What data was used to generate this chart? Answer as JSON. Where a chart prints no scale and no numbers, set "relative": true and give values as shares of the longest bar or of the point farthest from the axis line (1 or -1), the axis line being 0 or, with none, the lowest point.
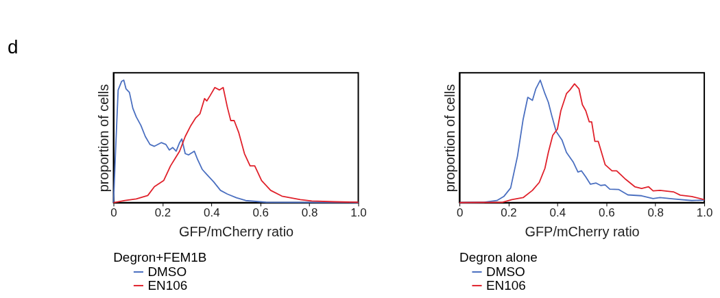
{
  "chart_data": [
    {
      "type": "line",
      "relative": true,
      "xlabel": "GFP/mCherry ratio",
      "ylabel": "proportion of cells",
      "legend_title": "Degron+FEM1B",
      "legend": "bottom",
      "annotations": [
        "d"
      ],
      "xlim": [
        0,
        1
      ],
      "xticks": [
        0,
        0.2,
        0.4,
        0.6,
        0.8,
        {
          "value": 1,
          "label": "1.0"
        }
      ],
      "grid": false,
      "marker": "none",
      "line_style": "solid",
      "series": [
        {
          "name": "DMSO",
          "color": "#4a6fc0",
          "x": [
            0,
            0.009,
            0.019,
            0.033,
            0.042,
            0.051,
            0.065,
            0.079,
            0.093,
            0.112,
            0.13,
            0.149,
            0.167,
            0.195,
            0.214,
            0.228,
            0.242,
            0.256,
            0.27,
            0.279,
            0.293,
            0.307,
            0.33,
            0.344,
            0.363,
            0.381,
            0.409,
            0.437,
            0.465,
            0.502,
            0.54,
            0.623,
            1
          ],
          "values": [
            0,
            0.45,
            0.92,
            0.99,
            1,
            0.93,
            0.9,
            0.77,
            0.7,
            0.63,
            0.54,
            0.475,
            0.46,
            0.49,
            0.475,
            0.43,
            0.45,
            0.42,
            0.49,
            0.52,
            0.4,
            0.39,
            0.42,
            0.35,
            0.27,
            0.23,
            0.17,
            0.1,
            0.07,
            0.04,
            0.017,
            0.003,
            0
          ]
        },
        {
          "name": "EN106",
          "color": "#e0202a",
          "x": [
            0,
            0.047,
            0.093,
            0.14,
            0.167,
            0.205,
            0.233,
            0.27,
            0.293,
            0.316,
            0.335,
            0.353,
            0.372,
            0.381,
            0.395,
            0.414,
            0.433,
            0.448,
            0.465,
            0.479,
            0.493,
            0.512,
            0.535,
            0.558,
            0.577,
            0.605,
            0.642,
            0.688,
            0.763,
            0.81,
            0.902,
            1
          ],
          "values": [
            0,
            0.017,
            0.03,
            0.058,
            0.13,
            0.18,
            0.3,
            0.42,
            0.54,
            0.63,
            0.69,
            0.725,
            0.85,
            0.83,
            0.875,
            0.94,
            0.92,
            0.94,
            0.78,
            0.67,
            0.67,
            0.57,
            0.4,
            0.3,
            0.3,
            0.18,
            0.1,
            0.053,
            0.025,
            0.013,
            0.007,
            0.003
          ]
        }
      ]
    },
    {
      "type": "line",
      "relative": true,
      "xlabel": "GFP/mCherry ratio",
      "ylabel": "proportion of cells",
      "legend_title": "Degron alone",
      "legend": "bottom",
      "xlim": [
        0,
        1
      ],
      "xticks": [
        0,
        0.2,
        0.4,
        0.6,
        0.8,
        {
          "value": 1,
          "label": "1.0"
        }
      ],
      "grid": false,
      "marker": "none",
      "line_style": "solid",
      "series": [
        {
          "name": "DMSO",
          "color": "#4a6fc0",
          "x": [
            0,
            0.102,
            0.153,
            0.181,
            0.209,
            0.237,
            0.26,
            0.279,
            0.298,
            0.312,
            0.33,
            0.349,
            0.363,
            0.377,
            0.395,
            0.419,
            0.437,
            0.465,
            0.484,
            0.498,
            0.516,
            0.535,
            0.558,
            0.577,
            0.595,
            0.614,
            0.651,
            0.688,
            0.744,
            0.791,
            0.819,
            0.874,
            0.949,
            1
          ],
          "values": [
            0,
            0.003,
            0.017,
            0.05,
            0.12,
            0.38,
            0.68,
            0.86,
            0.835,
            0.93,
            1,
            0.89,
            0.82,
            0.71,
            0.58,
            0.51,
            0.41,
            0.33,
            0.25,
            0.26,
            0.21,
            0.15,
            0.16,
            0.14,
            0.145,
            0.11,
            0.107,
            0.063,
            0.056,
            0.033,
            0.041,
            0.03,
            0.017,
            0.02
          ]
        },
        {
          "name": "EN106",
          "color": "#e0202a",
          "x": [
            0,
            0.177,
            0.214,
            0.26,
            0.298,
            0.326,
            0.349,
            0.363,
            0.381,
            0.4,
            0.414,
            0.437,
            0.451,
            0.47,
            0.488,
            0.502,
            0.516,
            0.53,
            0.54,
            0.553,
            0.567,
            0.595,
            0.623,
            0.642,
            0.679,
            0.716,
            0.744,
            0.772,
            0.791,
            0.819,
            0.874,
            0.902,
            0.949,
            1
          ],
          "values": [
            0,
            0.003,
            0.025,
            0.041,
            0.1,
            0.165,
            0.28,
            0.41,
            0.55,
            0.6,
            0.75,
            0.89,
            0.92,
            0.97,
            0.93,
            0.8,
            0.75,
            0.66,
            0.66,
            0.5,
            0.5,
            0.31,
            0.26,
            0.26,
            0.19,
            0.13,
            0.116,
            0.13,
            0.096,
            0.1,
            0.088,
            0.061,
            0.05,
            0.025
          ]
        }
      ]
    }
  ]
}
